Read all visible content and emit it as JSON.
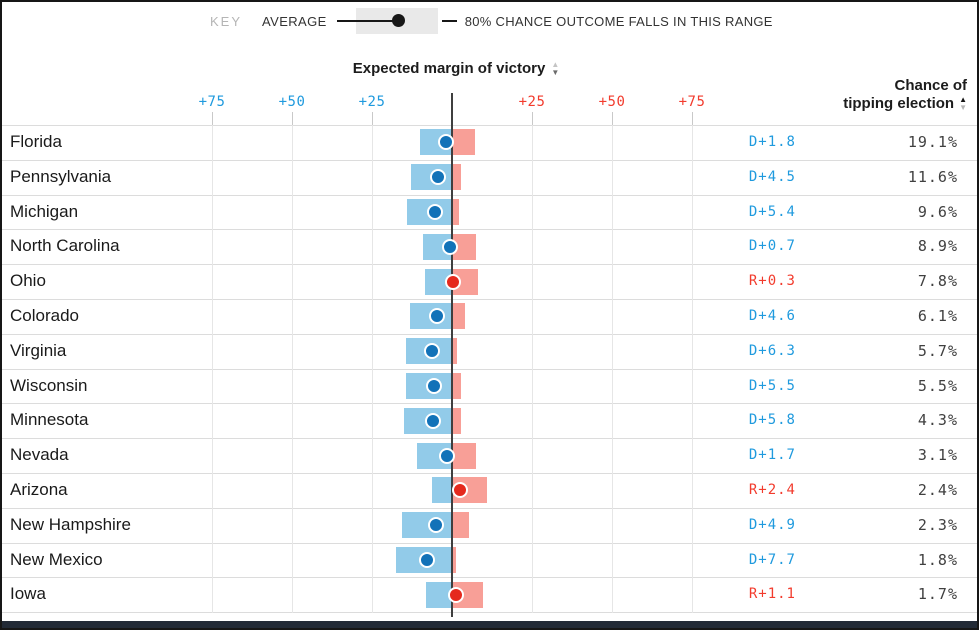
{
  "legend": {
    "key_label": "KEY",
    "average_label": "AVERAGE",
    "range_label": "80% CHANCE OUTCOME FALLS IN THIS RANGE"
  },
  "headers": {
    "margin": "Expected margin of victory",
    "chance_line1": "Chance of",
    "chance_line2": "tipping election"
  },
  "axis": {
    "dem_ticks": [
      "+75",
      "+50",
      "+25"
    ],
    "rep_ticks": [
      "+25",
      "+50",
      "+75"
    ]
  },
  "colors": {
    "dem_text": "#1f9ade",
    "rep_text": "#f23b2d",
    "dem_bar": "#92cbe9",
    "rep_bar": "#f89f97",
    "dem_dot": "#1272b8",
    "rep_dot": "#e5291d"
  },
  "chart_data": {
    "type": "bar",
    "title": "Expected margin of victory",
    "value_column": "Chance of tipping election",
    "x_axis": {
      "tick_values": [
        -75,
        -50,
        -25,
        0,
        25,
        50,
        75
      ],
      "left_is_democratic": true,
      "units": "margin of victory, percentage points"
    },
    "legend_note": "dot = average, shaded bar = 80% chance outcome falls in this range",
    "rows": [
      {
        "state": "Florida",
        "margin_label": "D+1.8",
        "party": "D",
        "avg": 1.8,
        "dem_extent": 10.0,
        "rep_extent": 7.2,
        "chance": "19.1%"
      },
      {
        "state": "Pennsylvania",
        "margin_label": "D+4.5",
        "party": "D",
        "avg": 4.5,
        "dem_extent": 12.8,
        "rep_extent": 2.8,
        "chance": "11.6%"
      },
      {
        "state": "Michigan",
        "margin_label": "D+5.4",
        "party": "D",
        "avg": 5.4,
        "dem_extent": 14.2,
        "rep_extent": 2.2,
        "chance": "9.6%"
      },
      {
        "state": "North Carolina",
        "margin_label": "D+0.7",
        "party": "D",
        "avg": 0.7,
        "dem_extent": 9.1,
        "rep_extent": 7.5,
        "chance": "8.9%"
      },
      {
        "state": "Ohio",
        "margin_label": "R+0.3",
        "party": "R",
        "avg": -0.3,
        "dem_extent": 8.3,
        "rep_extent": 8.2,
        "chance": "7.8%"
      },
      {
        "state": "Colorado",
        "margin_label": "D+4.6",
        "party": "D",
        "avg": 4.6,
        "dem_extent": 13.1,
        "rep_extent": 4.1,
        "chance": "6.1%"
      },
      {
        "state": "Virginia",
        "margin_label": "D+6.3",
        "party": "D",
        "avg": 6.3,
        "dem_extent": 14.4,
        "rep_extent": 1.5,
        "chance": "5.7%"
      },
      {
        "state": "Wisconsin",
        "margin_label": "D+5.5",
        "party": "D",
        "avg": 5.5,
        "dem_extent": 14.4,
        "rep_extent": 2.8,
        "chance": "5.5%"
      },
      {
        "state": "Minnesota",
        "margin_label": "D+5.8",
        "party": "D",
        "avg": 5.8,
        "dem_extent": 15.0,
        "rep_extent": 2.8,
        "chance": "4.3%"
      },
      {
        "state": "Nevada",
        "margin_label": "D+1.7",
        "party": "D",
        "avg": 1.7,
        "dem_extent": 11.0,
        "rep_extent": 7.4,
        "chance": "3.1%"
      },
      {
        "state": "Arizona",
        "margin_label": "R+2.4",
        "party": "R",
        "avg": -2.4,
        "dem_extent": 6.3,
        "rep_extent": 10.8,
        "chance": "2.4%"
      },
      {
        "state": "New Hampshire",
        "margin_label": "D+4.9",
        "party": "D",
        "avg": 4.9,
        "dem_extent": 15.7,
        "rep_extent": 5.3,
        "chance": "2.3%"
      },
      {
        "state": "New Mexico",
        "margin_label": "D+7.7",
        "party": "D",
        "avg": 7.7,
        "dem_extent": 17.5,
        "rep_extent": 1.3,
        "chance": "1.8%"
      },
      {
        "state": "Iowa",
        "margin_label": "R+1.1",
        "party": "R",
        "avg": -1.1,
        "dem_extent": 8.2,
        "rep_extent": 9.8,
        "chance": "1.7%"
      }
    ]
  }
}
